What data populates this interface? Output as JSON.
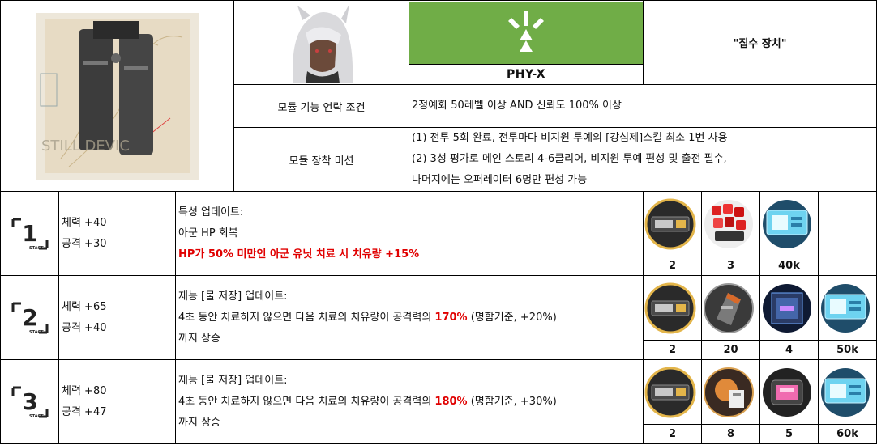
{
  "module": {
    "image_text": "STILL DEVIC",
    "type_code": "PHY-X",
    "name": "\"집수 장치\""
  },
  "conditions": {
    "unlock_label": "모듈 기능 언락 조건",
    "unlock_value": "2정예화 50레벨 이상 AND 신뢰도 100% 이상",
    "mission_label": "모듈 장착 미션",
    "mission_lines": [
      "(1) 전투 5회 완료, 전투마다 비지원 투예의 [강심제]스킬 최소 1번 사용",
      "(2) 3성 평가로 메인 스토리 4-6클리어, 비지원 투예 편성 및 출전 필수,",
      "나머지에는 오퍼레이터 6명만 편성 가능"
    ]
  },
  "stages": [
    {
      "stage_number": "1",
      "stage_label": "STAGE",
      "hp": "체력 +40",
      "atk": "공격 +30",
      "desc_line1": "특성 업데이트:",
      "desc_line2": "아군 HP 회복",
      "desc_line3_red": "HP가 50% 미만인 아군 유닛 치료 시 치유량 +15%",
      "materials": [
        "data-chip-icon",
        "red-cube-icon",
        "lmd-ticket-icon",
        ""
      ],
      "quantities": [
        "2",
        "3",
        "40k",
        ""
      ]
    },
    {
      "stage_number": "2",
      "stage_label": "STAGE",
      "hp": "체력 +65",
      "atk": "공격 +40",
      "desc_line1": "재능 [물 저장] 업데이트:",
      "desc_line2_pre": "4초 동안 치료하지 않으면 다음 치료의 치유량이 공격력의 ",
      "desc_line2_red": "170%",
      "desc_line2_post": " (명함기준, +20%)",
      "desc_line3": "까지 상승",
      "materials": [
        "data-chip-icon",
        "alloy-block-icon",
        "cyber-cube-icon",
        "lmd-ticket-icon"
      ],
      "quantities": [
        "2",
        "20",
        "4",
        "50k"
      ]
    },
    {
      "stage_number": "3",
      "stage_label": "STAGE",
      "hp": "체력 +80",
      "atk": "공격 +47",
      "desc_line1": "재능 [물 저장] 업데이트:",
      "desc_line2_pre": "4초 동안 치료하지 않으면 다음 치료의 치유량이 공격력의 ",
      "desc_line2_red": "180%",
      "desc_line2_post": " (명함기준, +30%)",
      "desc_line3": "까지 상승",
      "materials": [
        "data-chip-icon",
        "orange-gear-icon",
        "pink-device-icon",
        "lmd-ticket-icon"
      ],
      "quantities": [
        "2",
        "8",
        "5",
        "60k"
      ]
    }
  ],
  "colors": {
    "accent_green": "#70ad47",
    "highlight_red": "#e00000"
  }
}
